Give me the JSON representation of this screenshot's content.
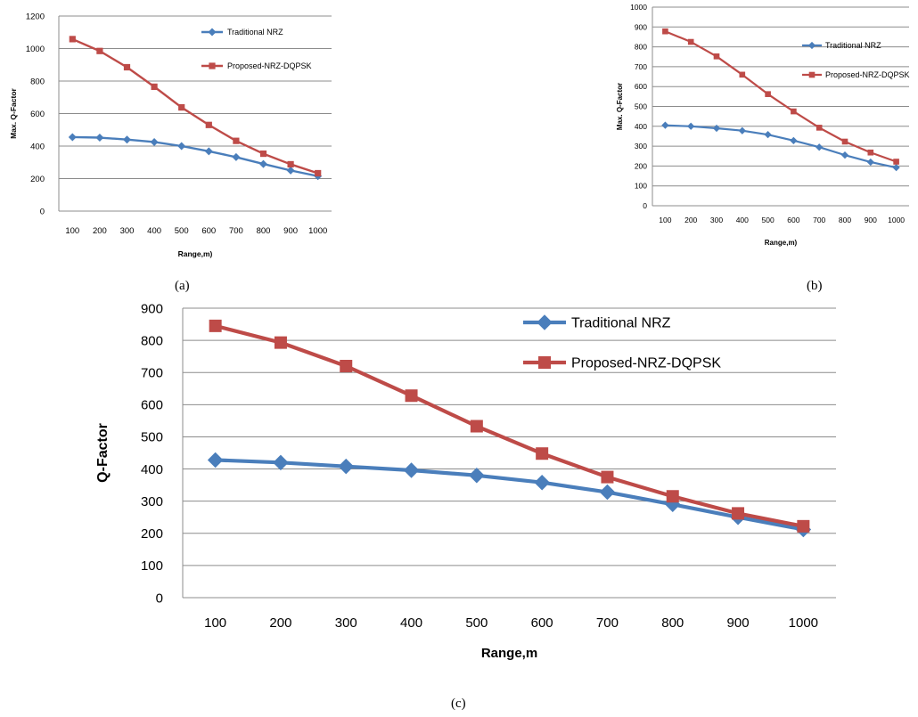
{
  "chart_data": [
    {
      "type": "line",
      "panel": "a",
      "title": "",
      "xlabel": "Range,m)",
      "ylabel": "Max. Q-Factor",
      "categories": [
        "100",
        "200",
        "300",
        "400",
        "500",
        "600",
        "700",
        "800",
        "900",
        "1000"
      ],
      "ylim": [
        0,
        1200
      ],
      "yticks": [
        "0",
        "200",
        "400",
        "600",
        "800",
        "1000",
        "1200"
      ],
      "grid": true,
      "legend_position": "top-right",
      "series": [
        {
          "name": "Traditional NRZ",
          "color": "#4a7ebb",
          "marker": "diamond",
          "values": [
            455,
            452,
            440,
            425,
            400,
            368,
            332,
            290,
            250,
            215
          ]
        },
        {
          "name": "Proposed-NRZ-DQPSK",
          "color": "#be4b48",
          "marker": "square",
          "values": [
            1058,
            985,
            885,
            765,
            638,
            530,
            432,
            353,
            288,
            233
          ]
        }
      ]
    },
    {
      "type": "line",
      "panel": "b",
      "title": "",
      "xlabel": "Range,m)",
      "ylabel": "Max. Q-Factor",
      "categories": [
        "100",
        "200",
        "300",
        "400",
        "500",
        "600",
        "700",
        "800",
        "900",
        "1000"
      ],
      "ylim": [
        0,
        1000
      ],
      "yticks": [
        "0",
        "100",
        "200",
        "300",
        "400",
        "500",
        "600",
        "700",
        "800",
        "900",
        "1000"
      ],
      "grid": true,
      "legend_position": "top-right",
      "series": [
        {
          "name": "Traditional NRZ",
          "color": "#4a7ebb",
          "marker": "diamond",
          "values": [
            405,
            400,
            390,
            378,
            358,
            328,
            295,
            255,
            220,
            192
          ]
        },
        {
          "name": "Proposed-NRZ-DQPSK",
          "color": "#be4b48",
          "marker": "square",
          "values": [
            878,
            825,
            752,
            660,
            562,
            475,
            393,
            323,
            268,
            222
          ]
        }
      ]
    },
    {
      "type": "line",
      "panel": "c",
      "title": "",
      "xlabel": "Range,m",
      "ylabel": "Q-Factor",
      "categories": [
        "100",
        "200",
        "300",
        "400",
        "500",
        "600",
        "700",
        "800",
        "900",
        "1000"
      ],
      "ylim": [
        0,
        900
      ],
      "yticks": [
        "0",
        "100",
        "200",
        "300",
        "400",
        "500",
        "600",
        "700",
        "800",
        "900"
      ],
      "grid": true,
      "legend_position": "top-right",
      "series": [
        {
          "name": "Traditional NRZ",
          "color": "#4a7ebb",
          "marker": "diamond",
          "values": [
            428,
            420,
            408,
            396,
            380,
            358,
            328,
            290,
            250,
            212
          ]
        },
        {
          "name": "Proposed-NRZ-DQPSK",
          "color": "#be4b48",
          "marker": "square",
          "values": [
            845,
            793,
            720,
            628,
            533,
            448,
            375,
            315,
            262,
            222
          ]
        }
      ]
    }
  ],
  "captions": {
    "a": "(a)",
    "b": "(b)",
    "c": "(c)"
  }
}
